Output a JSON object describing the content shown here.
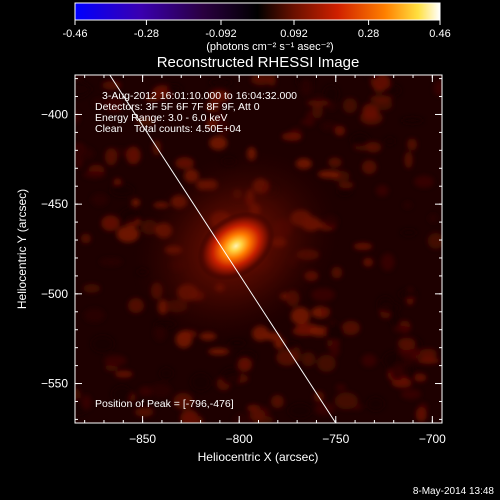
{
  "colorbar": {
    "ticks": [
      "-0.46",
      "-0.28",
      "-0.092",
      "0.092",
      "0.28",
      "0.46"
    ],
    "tick_values": [
      -0.46,
      -0.28,
      -0.092,
      0.092,
      0.28,
      0.46
    ],
    "range": [
      -0.46,
      0.46
    ],
    "units_label": "(photons cm⁻² s⁻¹ asec⁻²)"
  },
  "chart_data": {
    "type": "heatmap",
    "title": "Reconstructed RHESSI Image",
    "xlabel": "Heliocentric X (arcsec)",
    "ylabel": "Heliocentric Y (arcsec)",
    "xlim": [
      -885,
      -695
    ],
    "ylim": [
      -572,
      -378
    ],
    "xticks": [
      -850,
      -800,
      -750,
      -700
    ],
    "yticks": [
      -400,
      -450,
      -500,
      -550
    ],
    "xtick_labels": [
      "−850",
      "−800",
      "−750",
      "−700"
    ],
    "ytick_labels": [
      "−400",
      "−450",
      "−500",
      "−550"
    ],
    "peak": {
      "x": -796,
      "y": -476
    },
    "limb_line": [
      [
        -867,
        -378
      ],
      [
        -750,
        -572
      ]
    ],
    "annotations": [
      "3-Aug-2012 16:01:10.000 to 16:04:32.000",
      "Detectors: 3F 5F 6F 7F 8F 9F, Att 0",
      "Energy Range: 3.0 - 6.0 keV",
      "Clean    Total counts: 4.50E+04"
    ],
    "peak_label": "Position of Peak = [-796,-476]"
  },
  "footer": {
    "timestamp": "8-May-2014 13:48"
  }
}
